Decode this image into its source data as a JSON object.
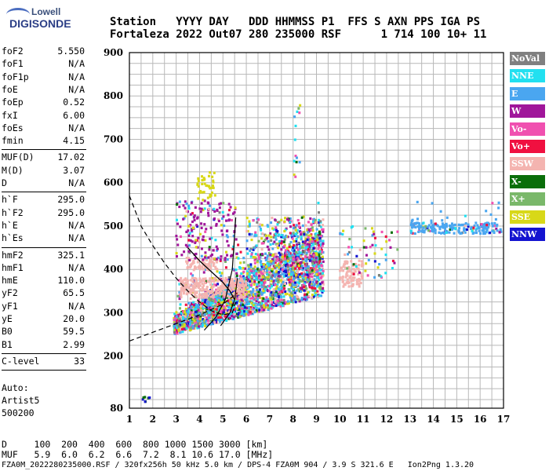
{
  "logo": {
    "line1": "Lowell",
    "line2": "DIGISONDE"
  },
  "header": {
    "row1": "Station   YYYY DAY   DDD HHMMSS P1  FFS S AXN PPS IGA PS",
    "row2": "Fortaleza 2022 Out07 280 235000 RSF      1 714 100 10+ 11"
  },
  "params_group1": [
    {
      "key": "foF2",
      "value": "5.550"
    },
    {
      "key": "foF1",
      "value": "N/A"
    },
    {
      "key": "foF1p",
      "value": "N/A"
    },
    {
      "key": "foE",
      "value": "N/A"
    },
    {
      "key": "foEp",
      "value": "0.52"
    },
    {
      "key": "fxI",
      "value": "6.00"
    },
    {
      "key": "foEs",
      "value": "N/A"
    },
    {
      "key": "fmin",
      "value": "4.15"
    }
  ],
  "params_group2": [
    {
      "key": "MUF(D)",
      "value": "17.02"
    },
    {
      "key": "M(D)",
      "value": "3.07"
    },
    {
      "key": "D",
      "value": "N/A"
    }
  ],
  "params_group3": [
    {
      "key": "h`F",
      "value": "295.0"
    },
    {
      "key": "h`F2",
      "value": "295.0"
    },
    {
      "key": "h`E",
      "value": "N/A"
    },
    {
      "key": "h`Es",
      "value": "N/A"
    }
  ],
  "params_group4": [
    {
      "key": "hmF2",
      "value": "325.1"
    },
    {
      "key": "hmF1",
      "value": "N/A"
    },
    {
      "key": "hmE",
      "value": "110.0"
    },
    {
      "key": "yF2",
      "value": "65.5"
    },
    {
      "key": "yF1",
      "value": "N/A"
    },
    {
      "key": "yE",
      "value": "20.0"
    },
    {
      "key": "B0",
      "value": "59.5"
    },
    {
      "key": "B1",
      "value": "2.99"
    }
  ],
  "params_group5": [
    {
      "key": "C-level",
      "value": "33"
    }
  ],
  "auto": {
    "line1": "Auto:",
    "line2": "Artist5",
    "line3": "500200"
  },
  "legend": [
    {
      "label": "NoVal",
      "color": "#808080"
    },
    {
      "label": "NNE",
      "color": "#22e0f0"
    },
    {
      "label": "E",
      "color": "#4aa6f0"
    },
    {
      "label": "W",
      "color": "#a0169a"
    },
    {
      "label": "Vo-",
      "color": "#f050b0"
    },
    {
      "label": "Vo+",
      "color": "#f01040"
    },
    {
      "label": "SSW",
      "color": "#f4b4b0"
    },
    {
      "label": "X-",
      "color": "#0a6e0a"
    },
    {
      "label": "X+",
      "color": "#7ab86a"
    },
    {
      "label": "SSE",
      "color": "#d8d818"
    },
    {
      "label": "NNW",
      "color": "#1414d0"
    }
  ],
  "bottom": {
    "d_row": "D     100  200  400  600  800 1000 1500 3000 [km]",
    "muf_row": "MUF   5.9  6.0  6.2  6.6  7.2  8.1 10.6 17.0 [MHz]"
  },
  "footer": "FZA0M_2022280235000.RSF / 320fx256h 50 kHz 5.0 km / DPS-4 FZA0M 904 / 3.9 S 321.6 E   Ion2Png 1.3.20",
  "chart_data": {
    "type": "scatter",
    "title": "",
    "xlabel": "",
    "ylabel": "",
    "xlim": [
      1,
      17
    ],
    "ylim": [
      80,
      900
    ],
    "xticks": [
      1,
      2,
      3,
      4,
      5,
      6,
      7,
      8,
      9,
      10,
      11,
      12,
      13,
      14,
      15,
      16,
      17
    ],
    "yticks": [
      80,
      200,
      300,
      400,
      500,
      600,
      700,
      800,
      900
    ],
    "grid": true,
    "legend_position": "right",
    "trace_clusters": [
      {
        "name": "F-region echoes",
        "x_range": [
          2.9,
          9.3
        ],
        "y_range": [
          250,
          560
        ]
      },
      {
        "name": "SSW band",
        "x_range": [
          3.2,
          6.0
        ],
        "y_range": [
          335,
          380
        ]
      },
      {
        "name": "SSW band high",
        "x_range": [
          10.0,
          11.0
        ],
        "y_range": [
          360,
          420
        ]
      },
      {
        "name": "high echoes",
        "x_range": [
          13.0,
          16.9
        ],
        "y_range": [
          470,
          560
        ]
      },
      {
        "name": "scattered",
        "x_range": [
          8.0,
          8.3
        ],
        "y_range": [
          600,
          790
        ]
      },
      {
        "name": "low echo",
        "x_range": [
          1.5,
          1.9
        ],
        "y_range": [
          95,
          110
        ]
      }
    ],
    "profile_curve": [
      [
        1,
        570
      ],
      [
        1.5,
        500
      ],
      [
        2,
        455
      ],
      [
        2.5,
        415
      ],
      [
        3,
        380
      ],
      [
        3.5,
        350
      ],
      [
        4,
        325
      ],
      [
        4.5,
        305
      ],
      [
        5,
        295
      ],
      [
        5.4,
        300
      ],
      [
        5.55,
        325
      ]
    ],
    "lower_curve": [
      [
        1,
        235
      ],
      [
        2,
        255
      ],
      [
        3,
        275
      ],
      [
        4,
        295
      ],
      [
        5,
        320
      ],
      [
        5.6,
        345
      ]
    ],
    "trace_curve": [
      [
        3.5,
        450
      ],
      [
        4.0,
        420
      ],
      [
        4.5,
        395
      ],
      [
        5.0,
        370
      ],
      [
        5.3,
        350
      ],
      [
        5.5,
        330
      ]
    ]
  }
}
